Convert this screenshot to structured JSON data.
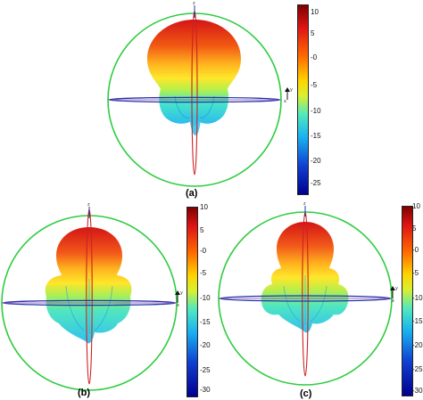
{
  "panels": [
    {
      "caption": "(a)",
      "colorbar_ticks": [
        "10",
        "5",
        "-0",
        "-5",
        "-10",
        "-15",
        "-20",
        "-25"
      ],
      "axis_labels": {
        "z": "z",
        "y": "y",
        "x": "x"
      }
    },
    {
      "caption": "(b)",
      "colorbar_ticks": [
        "10",
        "5",
        "-0",
        "-5",
        "-10",
        "-15",
        "-20",
        "-25",
        "-30"
      ],
      "axis_labels": {
        "z": "z",
        "y": "y",
        "x": "x"
      }
    },
    {
      "caption": "(c)",
      "colorbar_ticks": [
        "10",
        "5",
        "-0",
        "-5",
        "-10",
        "-15",
        "-20",
        "-25",
        "-30"
      ],
      "axis_labels": {
        "z": "z",
        "y": "y",
        "x": "x"
      }
    }
  ],
  "colors": {
    "sphere_outline": "#2ecc40",
    "elevation_cut": "#cc2222",
    "azimuth_cut": "#2233aa",
    "colormap": [
      "#8b0000",
      "#e31a1c",
      "#ff7f00",
      "#ffd700",
      "#e0f020",
      "#40e0d0",
      "#1e90ff",
      "#1010a0",
      "#000080"
    ]
  }
}
